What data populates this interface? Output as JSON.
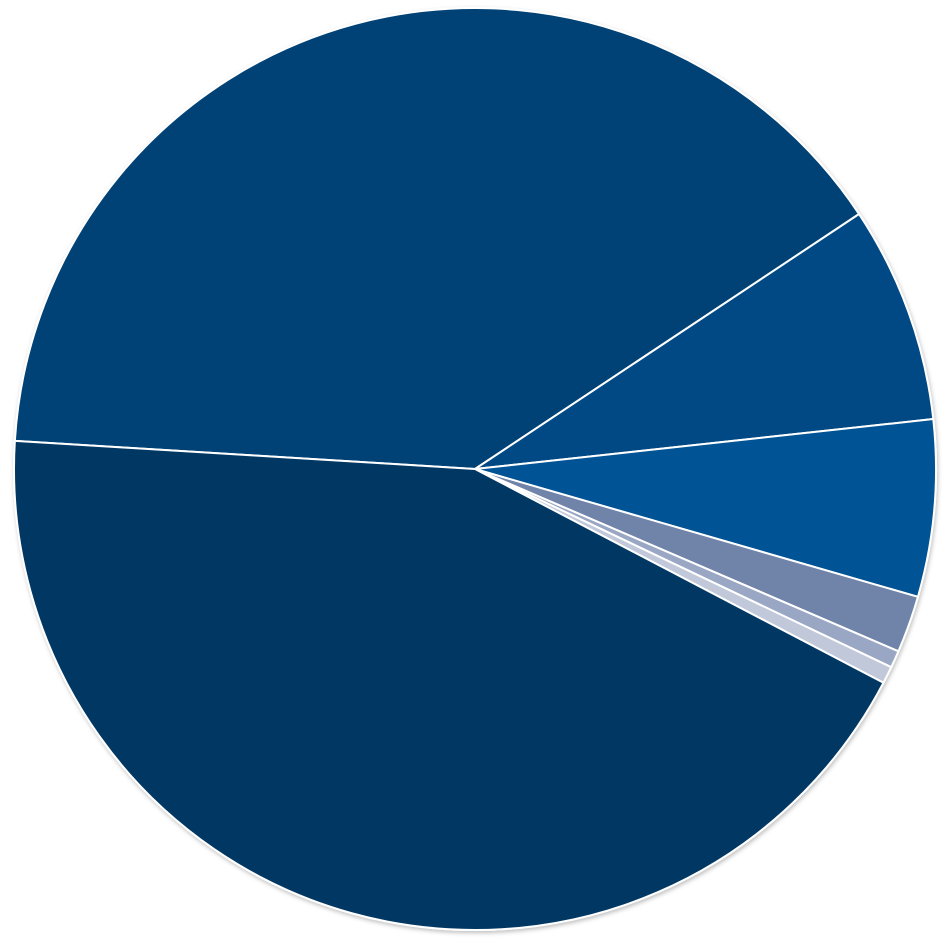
{
  "chart_data": {
    "type": "pie",
    "values": [
      39.7,
      7.6,
      6.2,
      2.0,
      0.6,
      0.6,
      43.3
    ],
    "colors": [
      "#034275",
      "#044a85",
      "#055294",
      "#6f83a9",
      "#9aa7c4",
      "#c0c8da",
      "#033764"
    ]
  }
}
